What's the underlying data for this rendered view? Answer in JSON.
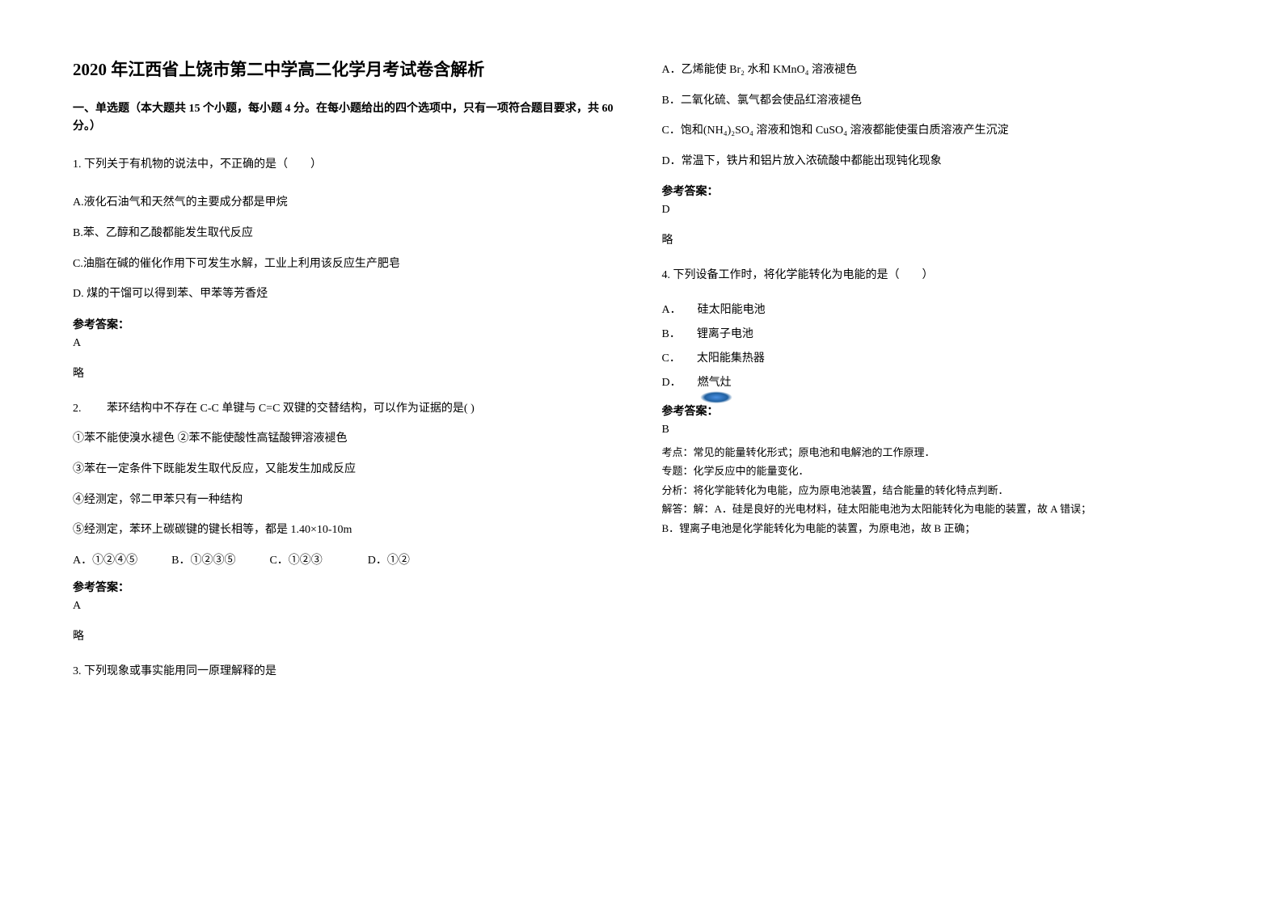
{
  "title": "2020 年江西省上饶市第二中学高二化学月考试卷含解析",
  "section_header": "一、单选题（本大题共 15 个小题，每小题 4 分。在每小题给出的四个选项中，只有一项符合题目要求，共 60 分。）",
  "q1": {
    "stem": "1. 下列关于有机物的说法中，不正确的是（　　）",
    "optA": "A.液化石油气和天然气的主要成分都是甲烷",
    "optB": "B.苯、乙醇和乙酸都能发生取代反应",
    "optC": "C.油脂在碱的催化作用下可发生水解，工业上利用该反应生产肥皂",
    "optD": "D. 煤的干馏可以得到苯、甲苯等芳香烃",
    "answer_label": "参考答案：",
    "answer": "A",
    "brief": "略"
  },
  "q2": {
    "stem": "2. 　　苯环结构中不存在 C-C 单键与 C=C 双键的交替结构，可以作为证据的是(  )",
    "s1": "①苯不能使溴水褪色  ②苯不能使酸性高锰酸钾溶液褪色",
    "s2": "③苯在一定条件下既能发生取代反应，又能发生加成反应",
    "s3": "④经测定，邻二甲苯只有一种结构",
    "s4": "⑤经测定，苯环上碳碳键的键长相等，都是 1.40×10-10m",
    "options": "A．①②④⑤　　　B．①②③⑤　　　C．①②③　　　　D．①②",
    "answer_label": "参考答案：",
    "answer": "A",
    "brief": "略"
  },
  "q3": {
    "stem": "3. 下列现象或事实能用同一原理解释的是",
    "optA": "A．乙烯能使 Br₂ 水和 KMnO₄ 溶液褪色",
    "optB": "B．二氧化硫、氯气都会使品红溶液褪色",
    "optC": "C．饱和(NH₄)₂SO₄ 溶液和饱和 CuSO₄ 溶液都能使蛋白质溶液产生沉淀",
    "optD": "D．常温下，铁片和铝片放入浓硫酸中都能出现钝化现象",
    "answer_label": "参考答案：",
    "answer": "D",
    "brief": "略"
  },
  "q4": {
    "stem": "4. 下列设备工作时，将化学能转化为电能的是（　　）",
    "optA_label": "A．",
    "optA_text": "硅太阳能电池",
    "optB_label": "B．",
    "optB_text": "锂离子电池",
    "optC_label": "C．",
    "optC_text": "太阳能集热器",
    "optD_label": "D．",
    "optD_text": "燃气灶",
    "answer_label": "参考答案：",
    "answer": "B",
    "analysis1": "考点：常见的能量转化形式；原电池和电解池的工作原理．",
    "analysis2": "专题：化学反应中的能量变化．",
    "analysis3": "分析：将化学能转化为电能，应为原电池装置，结合能量的转化特点判断．",
    "analysis4": "解答：解：A．硅是良好的光电材料，硅太阳能电池为太阳能转化为电能的装置，故 A 错误；",
    "analysis5": "B．锂离子电池是化学能转化为电能的装置，为原电池，故 B 正确；"
  }
}
